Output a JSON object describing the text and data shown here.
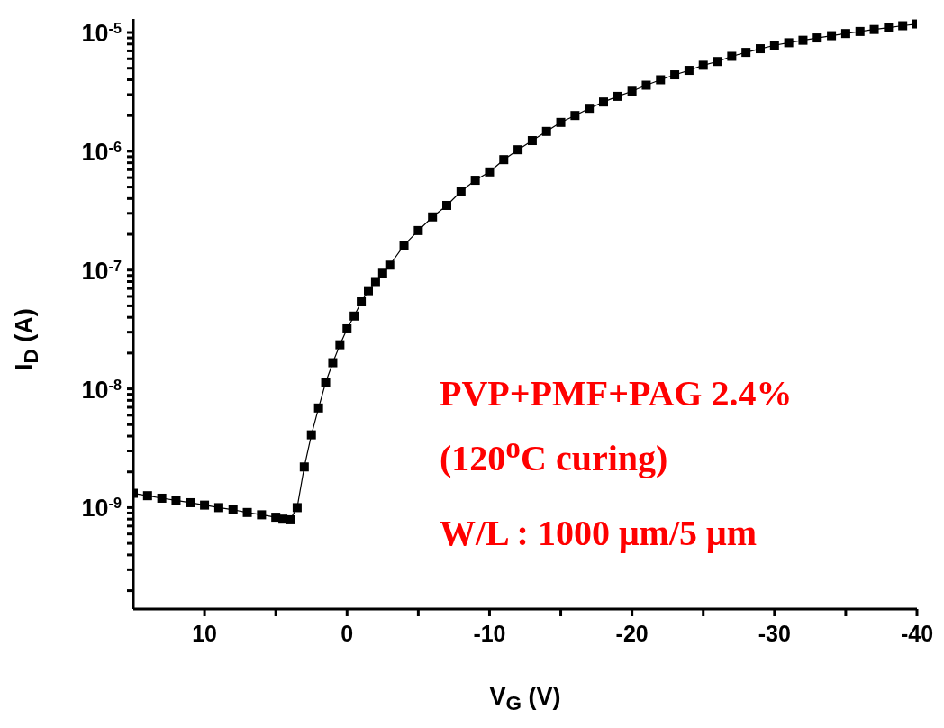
{
  "chart_data": {
    "type": "line",
    "xlabel": "V$_{G}$ (V)",
    "ylabel": "I$_{D}$ (A)",
    "log": "y",
    "marker": "square",
    "line_style": "solid",
    "xlim": [
      15,
      -40
    ],
    "xticks": [
      {
        "value": 10,
        "label": "10"
      },
      {
        "value": 5,
        "label": null
      },
      {
        "value": 0,
        "label": "0"
      },
      {
        "value": -5,
        "label": null
      },
      {
        "value": -10,
        "label": "-10"
      },
      {
        "value": -15,
        "label": null
      },
      {
        "value": -20,
        "label": "-20"
      },
      {
        "value": -25,
        "label": null
      },
      {
        "value": -30,
        "label": "-30"
      },
      {
        "value": -35,
        "label": null
      },
      {
        "value": -40,
        "label": "-40"
      }
    ],
    "ylim": [
      1.4e-10,
      1.3e-05
    ],
    "yticks": [
      {
        "value": 2e-10,
        "label": null
      },
      {
        "value": 3e-10,
        "label": null
      },
      {
        "value": 4e-10,
        "label": null
      },
      {
        "value": 5e-10,
        "label": null
      },
      {
        "value": 6e-10,
        "label": null
      },
      {
        "value": 7e-10,
        "label": null
      },
      {
        "value": 8e-10,
        "label": null
      },
      {
        "value": 9e-10,
        "label": null
      },
      {
        "value": 1e-09,
        "label": "10$^{-9}$"
      },
      {
        "value": 2e-09,
        "label": null
      },
      {
        "value": 3e-09,
        "label": null
      },
      {
        "value": 4e-09,
        "label": null
      },
      {
        "value": 5e-09,
        "label": null
      },
      {
        "value": 6e-09,
        "label": null
      },
      {
        "value": 7e-09,
        "label": null
      },
      {
        "value": 8e-09,
        "label": null
      },
      {
        "value": 9e-09,
        "label": null
      },
      {
        "value": 1e-08,
        "label": "10$^{-8}$"
      },
      {
        "value": 2e-08,
        "label": null
      },
      {
        "value": 3e-08,
        "label": null
      },
      {
        "value": 4e-08,
        "label": null
      },
      {
        "value": 5e-08,
        "label": null
      },
      {
        "value": 6e-08,
        "label": null
      },
      {
        "value": 7e-08,
        "label": null
      },
      {
        "value": 8e-08,
        "label": null
      },
      {
        "value": 9e-08,
        "label": null
      },
      {
        "value": 1e-07,
        "label": "10$^{-7}$"
      },
      {
        "value": 2e-07,
        "label": null
      },
      {
        "value": 3e-07,
        "label": null
      },
      {
        "value": 4e-07,
        "label": null
      },
      {
        "value": 5e-07,
        "label": null
      },
      {
        "value": 6e-07,
        "label": null
      },
      {
        "value": 7e-07,
        "label": null
      },
      {
        "value": 8e-07,
        "label": null
      },
      {
        "value": 9e-07,
        "label": null
      },
      {
        "value": 1e-06,
        "label": "10$^{-6}$"
      },
      {
        "value": 2e-06,
        "label": null
      },
      {
        "value": 3e-06,
        "label": null
      },
      {
        "value": 4e-06,
        "label": null
      },
      {
        "value": 5e-06,
        "label": null
      },
      {
        "value": 6e-06,
        "label": null
      },
      {
        "value": 7e-06,
        "label": null
      },
      {
        "value": 8e-06,
        "label": null
      },
      {
        "value": 9e-06,
        "label": null
      },
      {
        "value": 1e-05,
        "label": "10$^{-5}$"
      }
    ],
    "series": [
      {
        "color": "#000000",
        "x": [
          15,
          14,
          13,
          12,
          11,
          10,
          9,
          8,
          7,
          6,
          5,
          4.5,
          4,
          3.5,
          3,
          2.5,
          2,
          1.5,
          1,
          0.5,
          0,
          -0.5,
          -1,
          -1.5,
          -2,
          -2.5,
          -3,
          -4,
          -5,
          -6,
          -7,
          -8,
          -9,
          -10,
          -11,
          -12,
          -13,
          -14,
          -15,
          -16,
          -17,
          -18,
          -19,
          -20,
          -21,
          -22,
          -23,
          -24,
          -25,
          -26,
          -27,
          -28,
          -29,
          -30,
          -31,
          -32,
          -33,
          -34,
          -35,
          -36,
          -37,
          -38,
          -39,
          -40
        ],
        "values": [
          1.32e-09,
          1.26e-09,
          1.2e-09,
          1.15e-09,
          1.1e-09,
          1.05e-09,
          1e-09,
          9.6e-10,
          9.1e-10,
          8.7e-10,
          8.3e-10,
          8e-10,
          7.9e-10,
          1e-09,
          2.2e-09,
          4.1e-09,
          6.9e-09,
          1.13e-08,
          1.66e-08,
          2.35e-08,
          3.2e-08,
          4.1e-08,
          5.4e-08,
          6.7e-08,
          8e-08,
          9.4e-08,
          1.1e-07,
          1.62e-07,
          2.15e-07,
          2.8e-07,
          3.5e-07,
          4.6e-07,
          5.7e-07,
          6.7e-07,
          8.5e-07,
          1.03e-06,
          1.23e-06,
          1.47e-06,
          1.75e-06,
          2e-06,
          2.3e-06,
          2.6e-06,
          2.9e-06,
          3.2e-06,
          3.6e-06,
          4e-06,
          4.4e-06,
          4.8e-06,
          5.3e-06,
          5.7e-06,
          6.3e-06,
          6.8e-06,
          7.3e-06,
          7.8e-06,
          8.2e-06,
          8.6e-06,
          9e-06,
          9.4e-06,
          9.8e-06,
          1.02e-05,
          1.06e-05,
          1.1e-05,
          1.14e-05,
          1.18e-05
        ]
      }
    ],
    "annotations": [
      "PVP+PMF+PAG 2.4%",
      "(120$^{o}$C curing)",
      "W/L : 1000 μm/5 μm"
    ]
  }
}
